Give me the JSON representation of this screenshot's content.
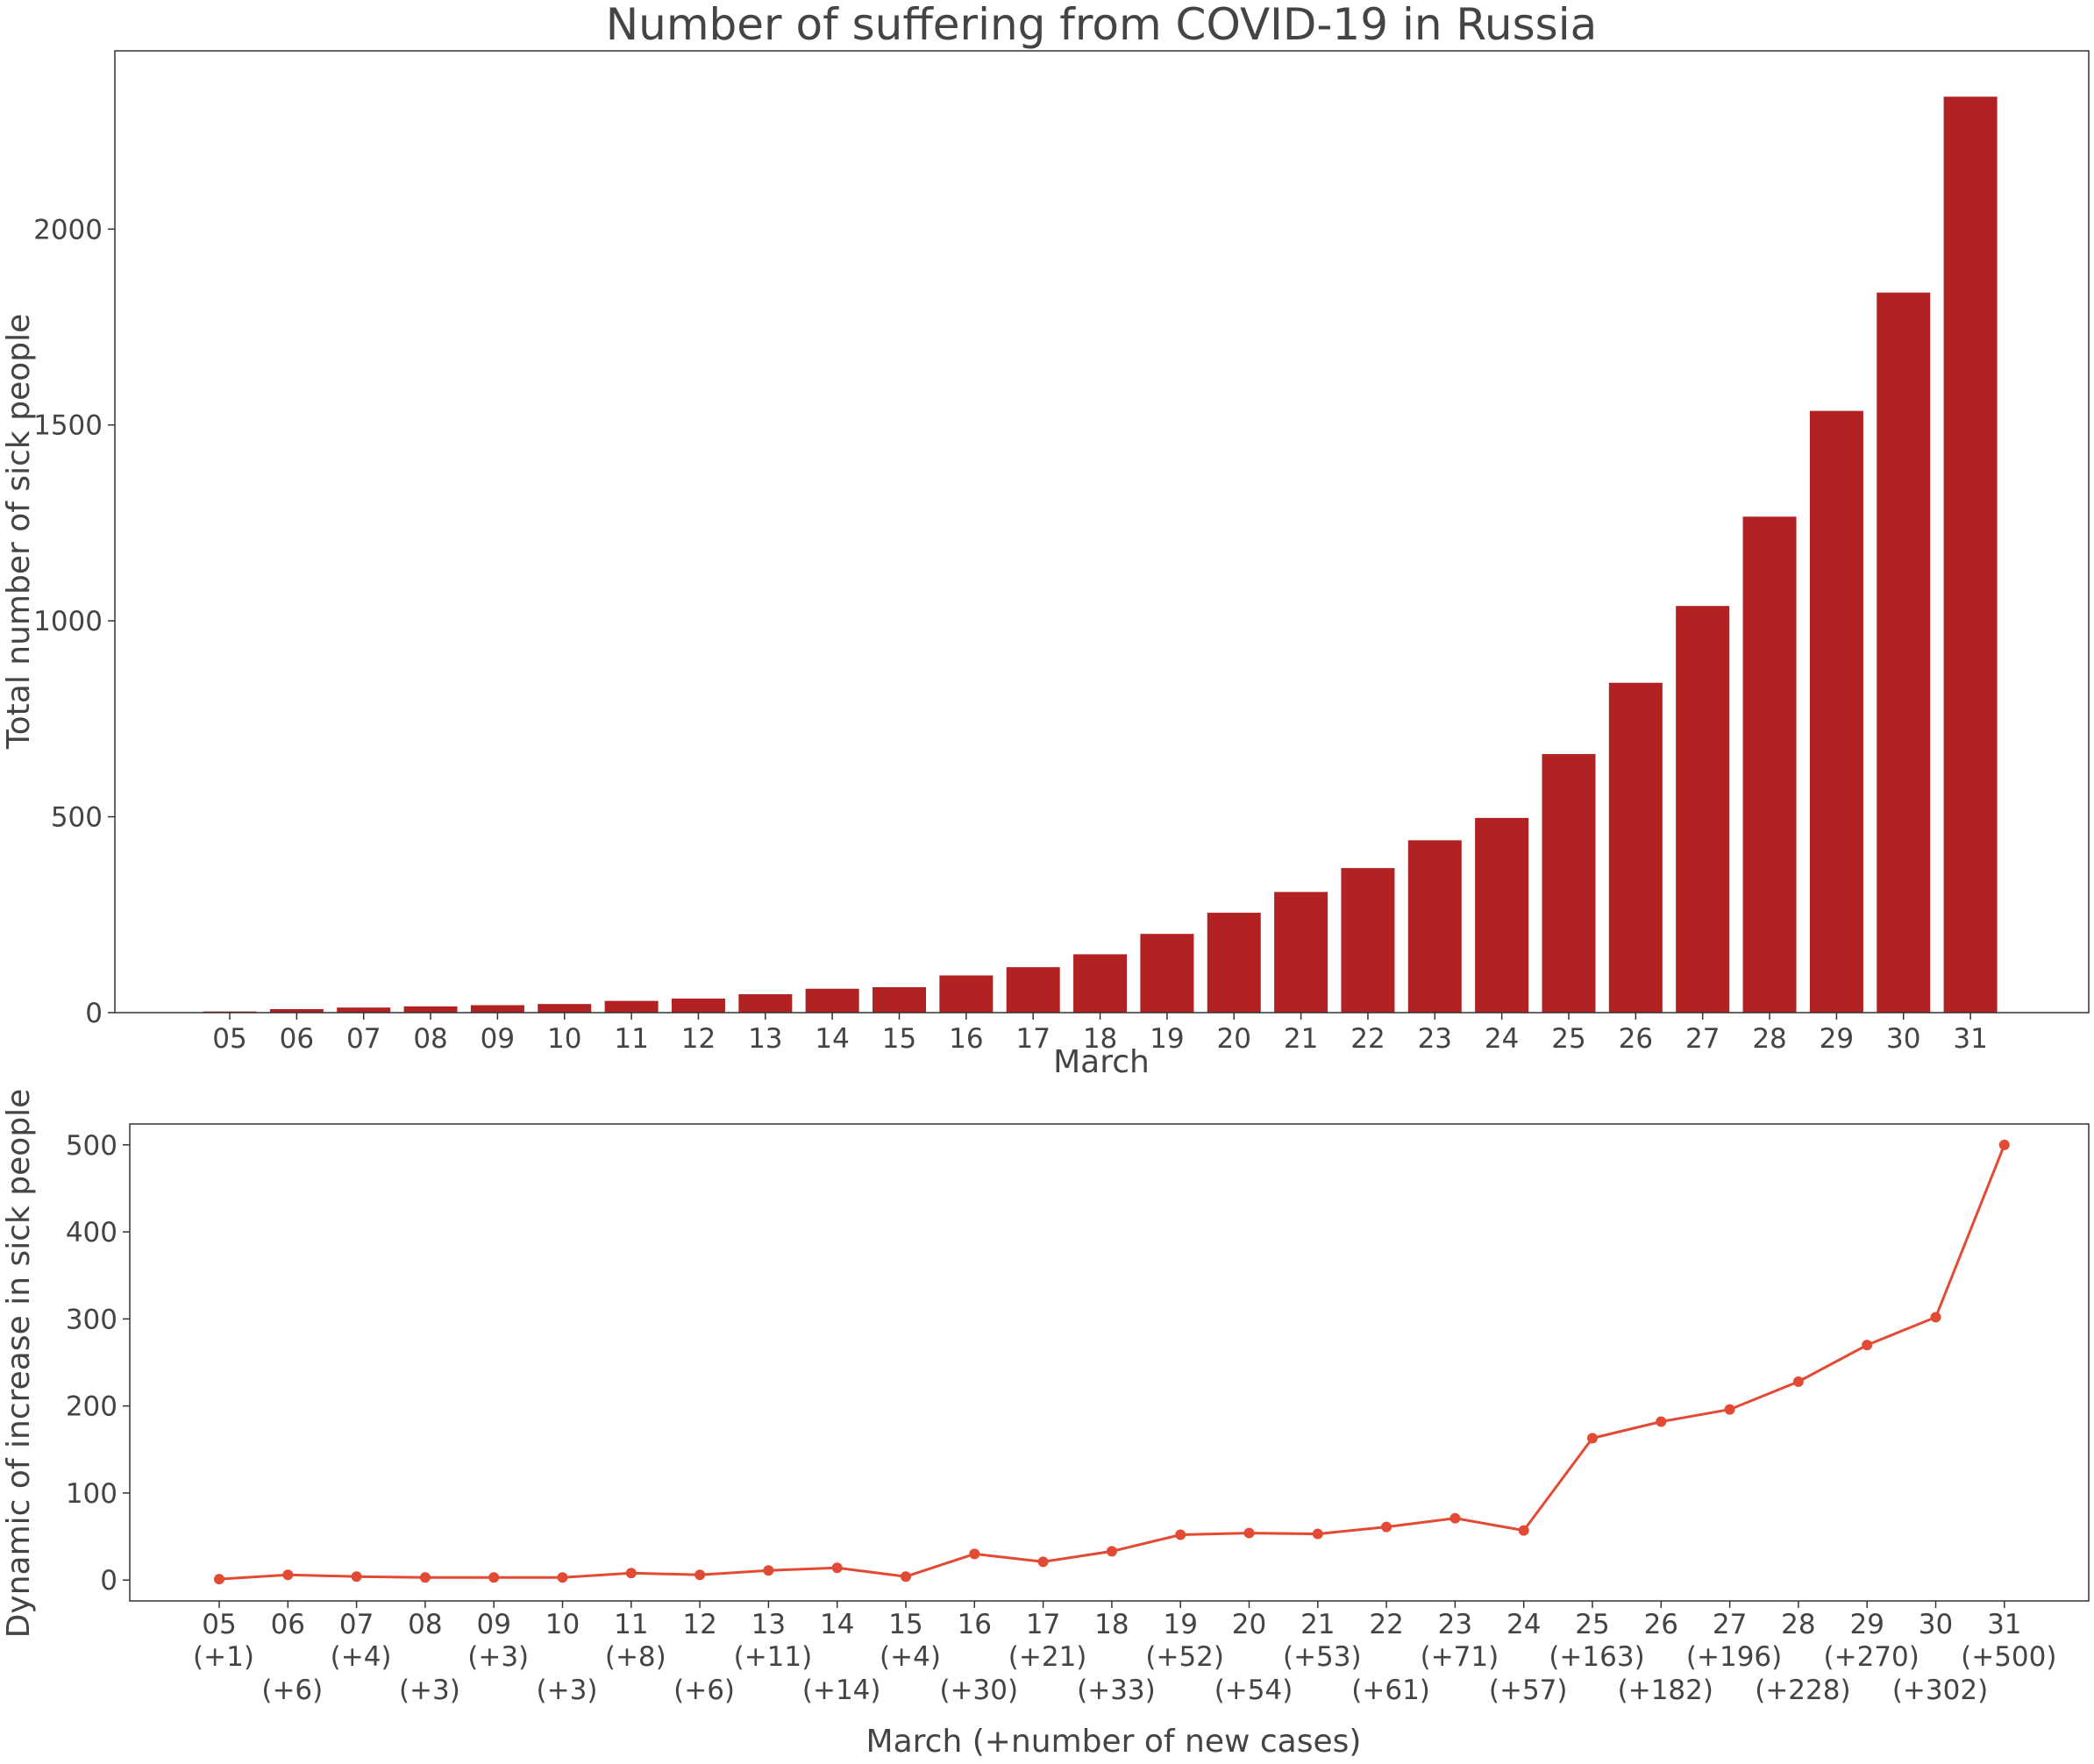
{
  "chart_data": [
    {
      "type": "bar",
      "title": "Number of suffering from COVID-19 in Russia",
      "xlabel": "March",
      "ylabel": "Total number of sick people",
      "categories": [
        "05",
        "06",
        "07",
        "08",
        "09",
        "10",
        "11",
        "12",
        "13",
        "14",
        "15",
        "16",
        "17",
        "18",
        "19",
        "20",
        "21",
        "22",
        "23",
        "24",
        "25",
        "26",
        "27",
        "28",
        "29",
        "30",
        "31"
      ],
      "values": [
        3,
        9,
        13,
        16,
        19,
        22,
        30,
        36,
        47,
        61,
        65,
        95,
        116,
        149,
        201,
        255,
        308,
        369,
        440,
        497,
        660,
        842,
        1038,
        1266,
        1536,
        1838,
        2338
      ],
      "yticks": [
        0,
        500,
        1000,
        1500,
        2000
      ],
      "ylim": [
        0,
        2455
      ],
      "grid": false,
      "colors": {
        "bar": "#b22222"
      }
    },
    {
      "type": "line",
      "title": "",
      "xlabel": "March (+number of new cases)",
      "ylabel": "Dynamic of increase in sick people",
      "categories": [
        "05",
        "06",
        "07",
        "08",
        "09",
        "10",
        "11",
        "12",
        "13",
        "14",
        "15",
        "16",
        "17",
        "18",
        "19",
        "20",
        "21",
        "22",
        "23",
        "24",
        "25",
        "26",
        "27",
        "28",
        "29",
        "30",
        "31"
      ],
      "increments": [
        "(+1)",
        "(+6)",
        "(+4)",
        "(+3)",
        "(+3)",
        "(+3)",
        "(+8)",
        "(+6)",
        "(+11)",
        "(+14)",
        "(+4)",
        "(+30)",
        "(+21)",
        "(+33)",
        "(+52)",
        "(+54)",
        "(+53)",
        "(+61)",
        "(+71)",
        "(+57)",
        "(+163)",
        "(+182)",
        "(+196)",
        "(+228)",
        "(+270)",
        "(+302)",
        "(+500)"
      ],
      "values": [
        1,
        6,
        4,
        3,
        3,
        3,
        8,
        6,
        11,
        14,
        4,
        30,
        21,
        33,
        52,
        54,
        53,
        61,
        71,
        57,
        163,
        182,
        196,
        228,
        270,
        302,
        500
      ],
      "yticks": [
        0,
        100,
        200,
        300,
        400,
        500
      ],
      "ylim": [
        -24,
        524
      ],
      "grid": false,
      "colors": {
        "line": "#e34a33",
        "marker": "#e34a33"
      }
    }
  ]
}
